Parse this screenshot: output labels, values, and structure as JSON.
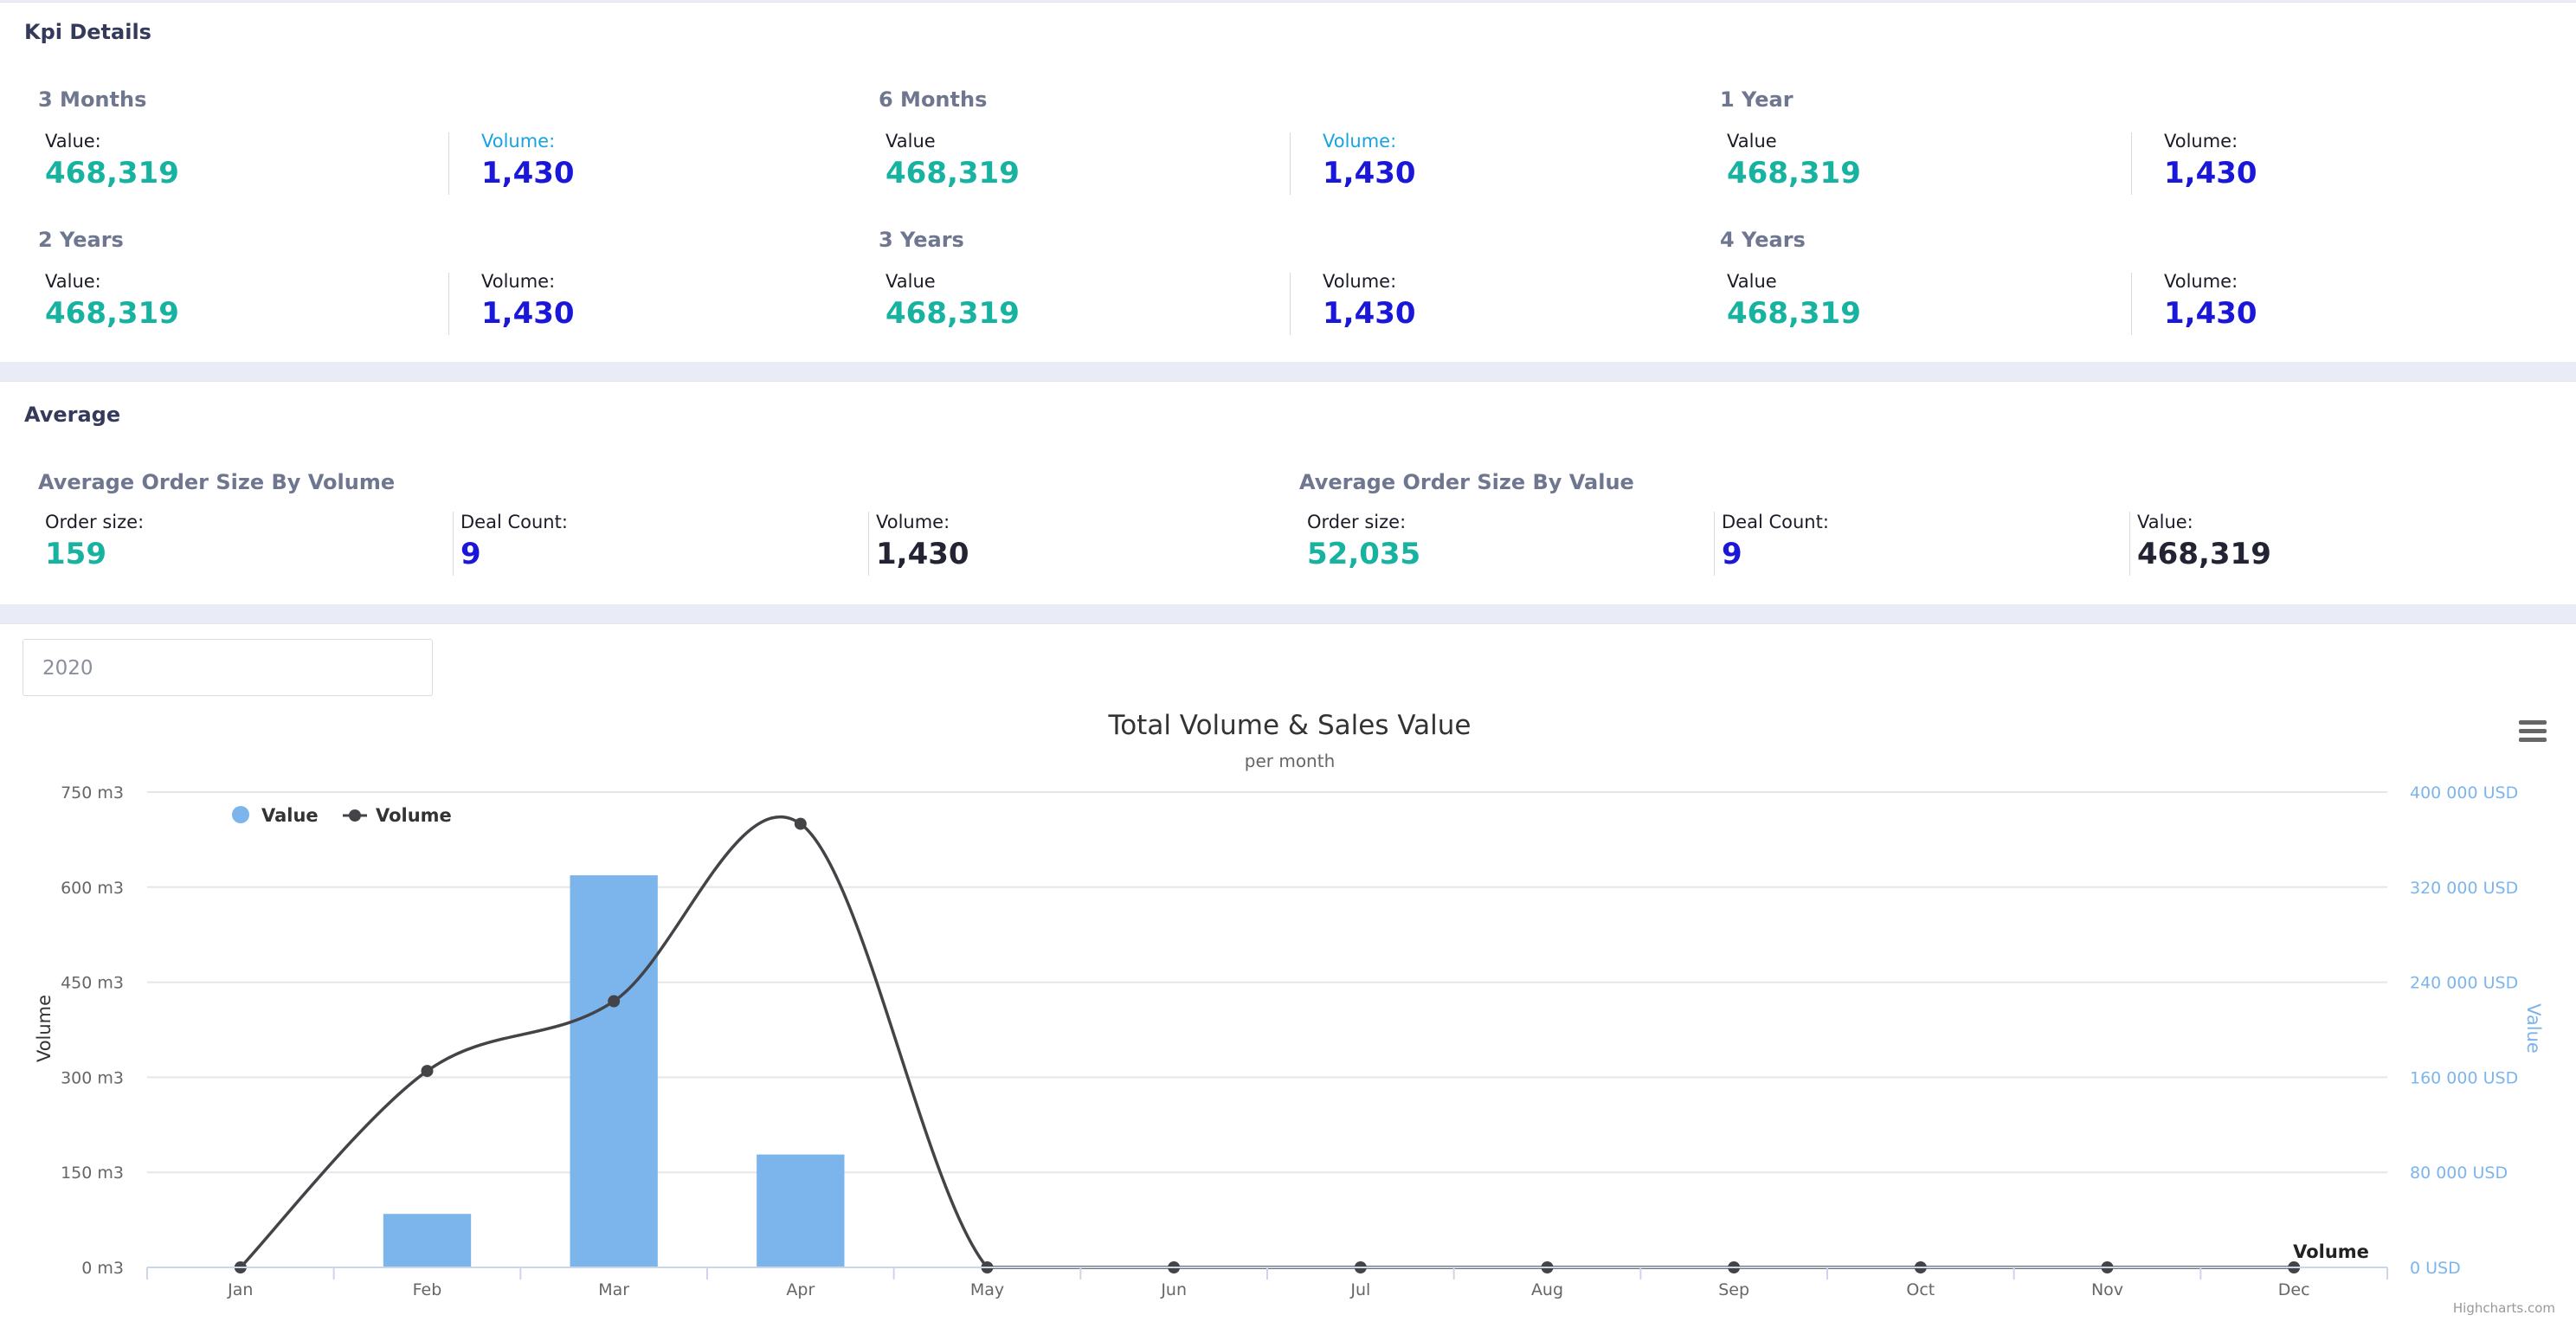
{
  "kpi": {
    "title": "Kpi Details",
    "groups": [
      {
        "title": "3 Months",
        "value_label": "Value:",
        "value": "468,319",
        "volume_label": "Volume:",
        "volume": "1,430"
      },
      {
        "title": "6 Months",
        "value_label": "Value",
        "value": "468,319",
        "volume_label": "Volume:",
        "volume": "1,430"
      },
      {
        "title": "1 Year",
        "value_label": "Value",
        "value": "468,319",
        "volume_label": "Volume:",
        "volume": "1,430"
      },
      {
        "title": "2 Years",
        "value_label": "Value:",
        "value": "468,319",
        "volume_label": "Volume:",
        "volume": "1,430"
      },
      {
        "title": "3 Years",
        "value_label": "Value",
        "value": "468,319",
        "volume_label": "Volume:",
        "volume": "1,430"
      },
      {
        "title": "4 Years",
        "value_label": "Value",
        "value": "468,319",
        "volume_label": "Volume:",
        "volume": "1,430"
      }
    ]
  },
  "average": {
    "title": "Average",
    "by_volume": {
      "title": "Average Order Size By Volume",
      "order_size_label": "Order size:",
      "order_size": "159",
      "deal_count_label": "Deal Count:",
      "deal_count": "9",
      "volume_label": "Volume:",
      "volume": "1,430"
    },
    "by_value": {
      "title": "Average Order Size By Value",
      "order_size_label": "Order size:",
      "order_size": "52,035",
      "deal_count_label": "Deal Count:",
      "deal_count": "9",
      "value_label": "Value:",
      "value": "468,319"
    }
  },
  "filter": {
    "year": "2020"
  },
  "chart_data": {
    "type": "bar",
    "title": "Total Volume & Sales Value",
    "subtitle": "per month",
    "categories": [
      "Jan",
      "Feb",
      "Mar",
      "Apr",
      "May",
      "Jun",
      "Jul",
      "Aug",
      "Sep",
      "Oct",
      "Nov",
      "Dec"
    ],
    "series": [
      {
        "name": "Value",
        "type": "bar",
        "axis": "right",
        "color": "#7cb5ec",
        "values": [
          0,
          45000,
          330000,
          95000,
          0,
          0,
          0,
          0,
          0,
          0,
          0,
          0
        ]
      },
      {
        "name": "Volume",
        "type": "line",
        "axis": "left",
        "color": "#434348",
        "values": [
          0,
          310,
          420,
          700,
          0,
          0,
          0,
          0,
          0,
          0,
          0,
          0
        ]
      }
    ],
    "y_left": {
      "label": "Volume",
      "ticks": [
        "0 m3",
        "150 m3",
        "300 m3",
        "450 m3",
        "600 m3",
        "750 m3"
      ],
      "range": [
        0,
        750
      ]
    },
    "y_right": {
      "label": "Value",
      "ticks": [
        "0 USD",
        "80 000 USD",
        "160 000 USD",
        "240 000 USD",
        "320 000 USD",
        "400 000 USD"
      ],
      "range": [
        0,
        400000
      ]
    },
    "end_label": "Volume",
    "credits": "Highcharts.com",
    "legend": "top-left",
    "grid": true
  }
}
